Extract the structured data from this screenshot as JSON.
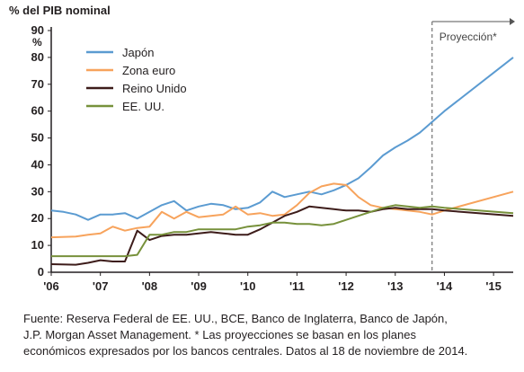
{
  "chart_data": {
    "type": "line",
    "ylabel": "% del PIB nominal",
    "yunit": "%",
    "ylim": [
      0,
      90
    ],
    "yticks": [
      0,
      10,
      20,
      30,
      40,
      50,
      60,
      70,
      80,
      90
    ],
    "xlim": [
      2006,
      2015.4
    ],
    "xticks": [
      {
        "value": 2006,
        "label": "'06"
      },
      {
        "value": 2007,
        "label": "'07"
      },
      {
        "value": 2008,
        "label": "'08"
      },
      {
        "value": 2009,
        "label": "'09"
      },
      {
        "value": 2010,
        "label": "'10"
      },
      {
        "value": 2011,
        "label": "'11"
      },
      {
        "value": 2012,
        "label": "'12"
      },
      {
        "value": 2013,
        "label": "'13"
      },
      {
        "value": 2014,
        "label": "'14"
      },
      {
        "value": 2015,
        "label": "'15"
      }
    ],
    "projection": {
      "start": 2013.75,
      "label": "Proyección*"
    },
    "legend_position": "top-left",
    "grid": false,
    "series": [
      {
        "name": "Japón",
        "color": "#5b9bd1",
        "points": [
          [
            2006.0,
            23
          ],
          [
            2006.25,
            22.5
          ],
          [
            2006.5,
            21.5
          ],
          [
            2006.75,
            19.5
          ],
          [
            2007.0,
            21.5
          ],
          [
            2007.25,
            21.5
          ],
          [
            2007.5,
            22
          ],
          [
            2007.75,
            20
          ],
          [
            2008.0,
            22.5
          ],
          [
            2008.25,
            25
          ],
          [
            2008.5,
            26.5
          ],
          [
            2008.75,
            23
          ],
          [
            2009.0,
            24.5
          ],
          [
            2009.25,
            25.5
          ],
          [
            2009.5,
            25
          ],
          [
            2009.75,
            23.5
          ],
          [
            2010.0,
            24
          ],
          [
            2010.25,
            26
          ],
          [
            2010.5,
            30
          ],
          [
            2010.75,
            28
          ],
          [
            2011.0,
            29
          ],
          [
            2011.25,
            30
          ],
          [
            2011.5,
            29
          ],
          [
            2011.75,
            30.5
          ],
          [
            2012.0,
            32.5
          ],
          [
            2012.25,
            35
          ],
          [
            2012.5,
            39
          ],
          [
            2012.75,
            43.5
          ],
          [
            2013.0,
            46.5
          ],
          [
            2013.25,
            49
          ],
          [
            2013.5,
            52
          ],
          [
            2013.75,
            56
          ],
          [
            2014.0,
            60
          ],
          [
            2015.4,
            80
          ]
        ]
      },
      {
        "name": "Zona euro",
        "color": "#f7a35c",
        "points": [
          [
            2006.0,
            13
          ],
          [
            2006.5,
            13.3
          ],
          [
            2006.75,
            14
          ],
          [
            2007.0,
            14.5
          ],
          [
            2007.25,
            17
          ],
          [
            2007.5,
            15.5
          ],
          [
            2007.75,
            16.5
          ],
          [
            2008.0,
            17
          ],
          [
            2008.25,
            22.5
          ],
          [
            2008.5,
            20
          ],
          [
            2008.75,
            22.5
          ],
          [
            2009.0,
            20.5
          ],
          [
            2009.25,
            21
          ],
          [
            2009.5,
            21.5
          ],
          [
            2009.75,
            24.5
          ],
          [
            2010.0,
            21.5
          ],
          [
            2010.25,
            22
          ],
          [
            2010.5,
            21
          ],
          [
            2010.75,
            21.5
          ],
          [
            2011.0,
            25
          ],
          [
            2011.25,
            29.5
          ],
          [
            2011.5,
            32
          ],
          [
            2011.75,
            33
          ],
          [
            2012.0,
            32.5
          ],
          [
            2012.25,
            28
          ],
          [
            2012.5,
            25
          ],
          [
            2012.75,
            24
          ],
          [
            2013.0,
            23.5
          ],
          [
            2013.25,
            23
          ],
          [
            2013.5,
            22.5
          ],
          [
            2013.75,
            21.5
          ],
          [
            2014.0,
            23
          ],
          [
            2015.4,
            30
          ]
        ]
      },
      {
        "name": "Reino Unido",
        "color": "#3d1c1a",
        "points": [
          [
            2006.0,
            3
          ],
          [
            2006.5,
            2.8
          ],
          [
            2006.75,
            3.5
          ],
          [
            2007.0,
            4.5
          ],
          [
            2007.25,
            4
          ],
          [
            2007.5,
            4
          ],
          [
            2007.75,
            15.5
          ],
          [
            2008.0,
            12
          ],
          [
            2008.25,
            13.5
          ],
          [
            2008.5,
            14
          ],
          [
            2008.75,
            14
          ],
          [
            2009.0,
            14.5
          ],
          [
            2009.25,
            15
          ],
          [
            2009.5,
            14.5
          ],
          [
            2009.75,
            14
          ],
          [
            2010.0,
            14
          ],
          [
            2010.25,
            16
          ],
          [
            2010.5,
            18.5
          ],
          [
            2010.75,
            21
          ],
          [
            2011.0,
            22.5
          ],
          [
            2011.25,
            24.5
          ],
          [
            2011.5,
            24
          ],
          [
            2011.75,
            23.5
          ],
          [
            2012.0,
            23
          ],
          [
            2012.25,
            23
          ],
          [
            2012.5,
            22.5
          ],
          [
            2012.75,
            23.5
          ],
          [
            2013.0,
            24
          ],
          [
            2013.25,
            23.5
          ],
          [
            2013.5,
            23.5
          ],
          [
            2013.75,
            23.5
          ],
          [
            2014.0,
            23
          ],
          [
            2015.4,
            21
          ]
        ]
      },
      {
        "name": "EE. UU.",
        "color": "#77913b",
        "points": [
          [
            2006.0,
            6
          ],
          [
            2006.5,
            6
          ],
          [
            2006.75,
            6
          ],
          [
            2007.0,
            6
          ],
          [
            2007.25,
            6
          ],
          [
            2007.5,
            6
          ],
          [
            2007.75,
            6.5
          ],
          [
            2008.0,
            14
          ],
          [
            2008.25,
            14
          ],
          [
            2008.5,
            15
          ],
          [
            2008.75,
            15
          ],
          [
            2009.0,
            16
          ],
          [
            2009.25,
            16
          ],
          [
            2009.5,
            16
          ],
          [
            2009.75,
            16
          ],
          [
            2010.0,
            17
          ],
          [
            2010.25,
            17.5
          ],
          [
            2010.5,
            18.5
          ],
          [
            2010.75,
            18.5
          ],
          [
            2011.0,
            18
          ],
          [
            2011.25,
            18
          ],
          [
            2011.5,
            17.5
          ],
          [
            2011.75,
            18
          ],
          [
            2012.0,
            19.5
          ],
          [
            2012.25,
            21
          ],
          [
            2012.5,
            22.5
          ],
          [
            2012.75,
            24
          ],
          [
            2013.0,
            25
          ],
          [
            2013.25,
            24.5
          ],
          [
            2013.5,
            24
          ],
          [
            2013.75,
            24.5
          ],
          [
            2014.0,
            24
          ],
          [
            2015.4,
            22
          ]
        ]
      }
    ]
  },
  "source": {
    "lines": [
      "Fuente: Reserva Federal de EE. UU., BCE, Banco de Inglaterra, Banco de Japón,",
      "J.P. Morgan Asset Management.  * Las proyecciones se basan en los planes",
      "económicos expresados por los bancos centrales. Datos al 18 de noviembre de 2014."
    ]
  }
}
